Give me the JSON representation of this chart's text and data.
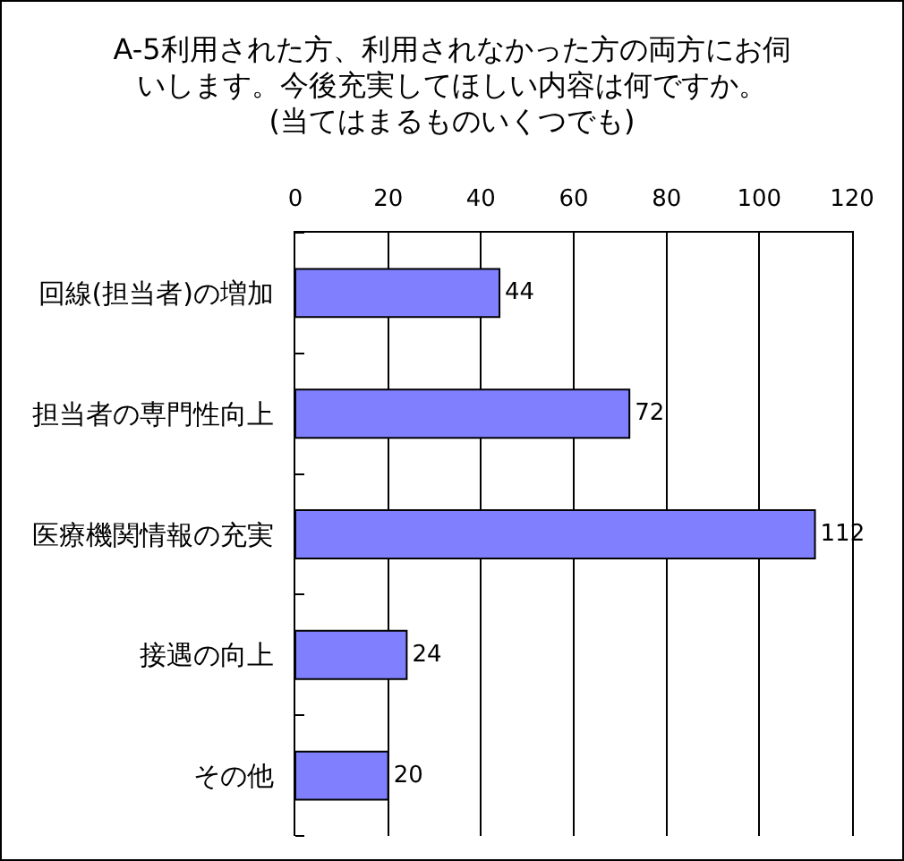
{
  "chart_data": {
    "type": "bar",
    "orientation": "horizontal",
    "title": "A-5利用された方、利用されなかった方の両方にお伺いします。今後充実してほしい内容は何ですか。",
    "subtitle": "(当てはまるものいくつでも)",
    "categories": [
      "回線(担当者)の増加",
      "担当者の専門性向上",
      "医療機関情報の充実",
      "接遇の向上",
      "その他"
    ],
    "values": [
      44,
      72,
      112,
      24,
      20
    ],
    "color": "#8080ff",
    "xlim": [
      0,
      120
    ],
    "xticks": [
      0,
      20,
      40,
      60,
      80,
      100,
      120
    ],
    "grid": "x",
    "data_labels": true
  }
}
